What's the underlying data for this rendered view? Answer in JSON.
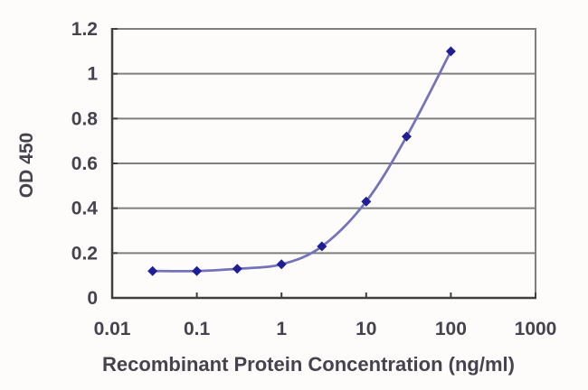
{
  "chart_data": {
    "type": "line",
    "title": "",
    "xlabel": "Recombinant Protein Concentration (ng/ml)",
    "ylabel": "OD 450",
    "x_scale": "log",
    "xlim": [
      0.01,
      1000
    ],
    "ylim": [
      0,
      1.2
    ],
    "xticks": {
      "values": [
        0.01,
        0.1,
        1,
        10,
        100,
        1000
      ],
      "labels": [
        "0.01",
        "0.1",
        "1",
        "10",
        "100",
        "1000"
      ]
    },
    "yticks": {
      "values": [
        0,
        0.2,
        0.4,
        0.6,
        0.8,
        1,
        1.2
      ],
      "labels": [
        "0",
        "0.2",
        "0.4",
        "0.6",
        "0.8",
        "1",
        "1.2"
      ]
    },
    "grid": "horizontal",
    "legend": "none",
    "series": [
      {
        "marker": "diamond",
        "line_style": "smooth",
        "x": [
          0.03,
          0.1,
          0.3,
          1,
          3,
          10,
          30,
          100
        ],
        "y": [
          0.12,
          0.12,
          0.13,
          0.15,
          0.23,
          0.43,
          0.72,
          1.1
        ]
      }
    ],
    "colors": {
      "line": "#7373bb",
      "marker": "#1e1e96",
      "grid": "#7f7f7f",
      "axis": "#3f3f3f",
      "text": "#46434e",
      "background": "#fdfcfa"
    }
  }
}
